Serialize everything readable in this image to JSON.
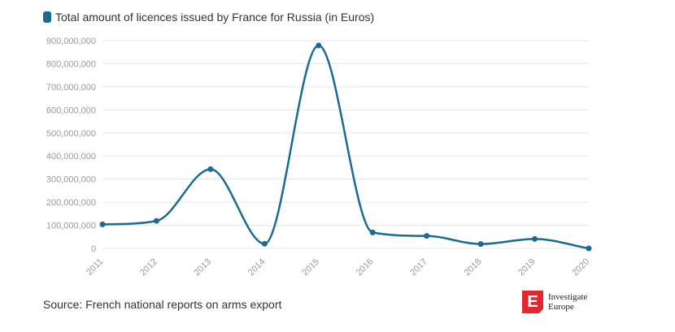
{
  "legend": {
    "label": "Total amount of licences issued by France for Russia (in Euros)"
  },
  "source": "Source: French national reports on arms export",
  "logo": {
    "mark": "E",
    "line1": "Investigate",
    "line2": "Europe"
  },
  "colors": {
    "series": "#1a6a96",
    "grid": "#e6e6e6",
    "tick": "#9a9a9a",
    "logo": "#e3262f"
  },
  "chart_data": {
    "type": "line",
    "x": [
      "2011",
      "2012",
      "2013",
      "2014",
      "2015",
      "2016",
      "2017",
      "2018",
      "2019",
      "2020"
    ],
    "series": [
      {
        "name": "Total amount of licences issued by France for Russia (in Euros)",
        "values": [
          104000000,
          119000000,
          343000000,
          20000000,
          879000000,
          69000000,
          54000000,
          19000000,
          41000000,
          0
        ]
      }
    ],
    "ylim": [
      0,
      900000000
    ],
    "yticks": [
      "0",
      "100,000,000",
      "200,000,000",
      "300,000,000",
      "400,000,000",
      "500,000,000",
      "600,000,000",
      "700,000,000",
      "800,000,000",
      "900,000,000"
    ],
    "grid": true,
    "legend_position": "top-left",
    "xlabel": "",
    "ylabel": "",
    "title": ""
  }
}
